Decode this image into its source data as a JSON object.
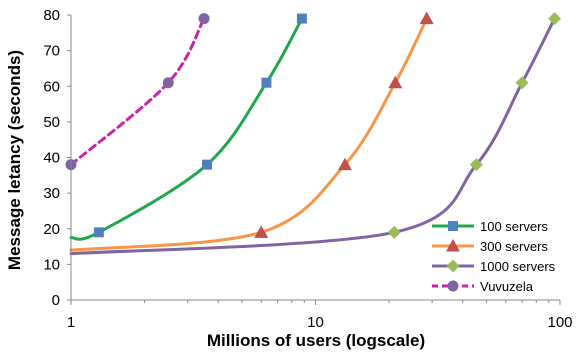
{
  "chart_data": {
    "type": "line",
    "xlabel": "Millions of users (logscale)",
    "ylabel": "Message letancy (seconds)",
    "x_scale": "log",
    "xlim": [
      1,
      100
    ],
    "ylim": [
      0,
      80
    ],
    "x_ticks": [
      1,
      10,
      100
    ],
    "x_tick_labels": [
      "1",
      "10",
      "100"
    ],
    "y_ticks": [
      0,
      10,
      20,
      30,
      40,
      50,
      60,
      70,
      80
    ],
    "y_tick_labels": [
      "0",
      "10",
      "20",
      "30",
      "40",
      "50",
      "60",
      "70",
      "80"
    ],
    "grid": false,
    "legend_position": "bottom-right",
    "series": [
      {
        "name": "100 servers",
        "color": "#1ea84a",
        "marker": "square",
        "marker_color": "#4f81bd",
        "dashed": false,
        "points": [
          [
            1,
            17.5
          ],
          [
            1.3,
            19
          ],
          [
            3.6,
            38
          ],
          [
            6.3,
            61
          ],
          [
            8.8,
            79
          ]
        ]
      },
      {
        "name": "300 servers",
        "color": "#f79646",
        "marker": "triangle",
        "marker_color": "#c0504d",
        "dashed": false,
        "points": [
          [
            1,
            14
          ],
          [
            6,
            19
          ],
          [
            13.2,
            38
          ],
          [
            21.2,
            61
          ],
          [
            28.5,
            79
          ]
        ]
      },
      {
        "name": "1000 servers",
        "color": "#8064a2",
        "marker": "diamond",
        "marker_color": "#9bbb59",
        "dashed": false,
        "points": [
          [
            1,
            13
          ],
          [
            21,
            19
          ],
          [
            45.5,
            38
          ],
          [
            70,
            61
          ],
          [
            95,
            79
          ]
        ]
      },
      {
        "name": "Vuvuzela",
        "color": "#cc22aa",
        "marker": "circle",
        "marker_color": "#8064a2",
        "dashed": true,
        "points": [
          [
            1,
            38
          ],
          [
            2.5,
            61
          ],
          [
            3.5,
            79
          ]
        ]
      }
    ]
  }
}
